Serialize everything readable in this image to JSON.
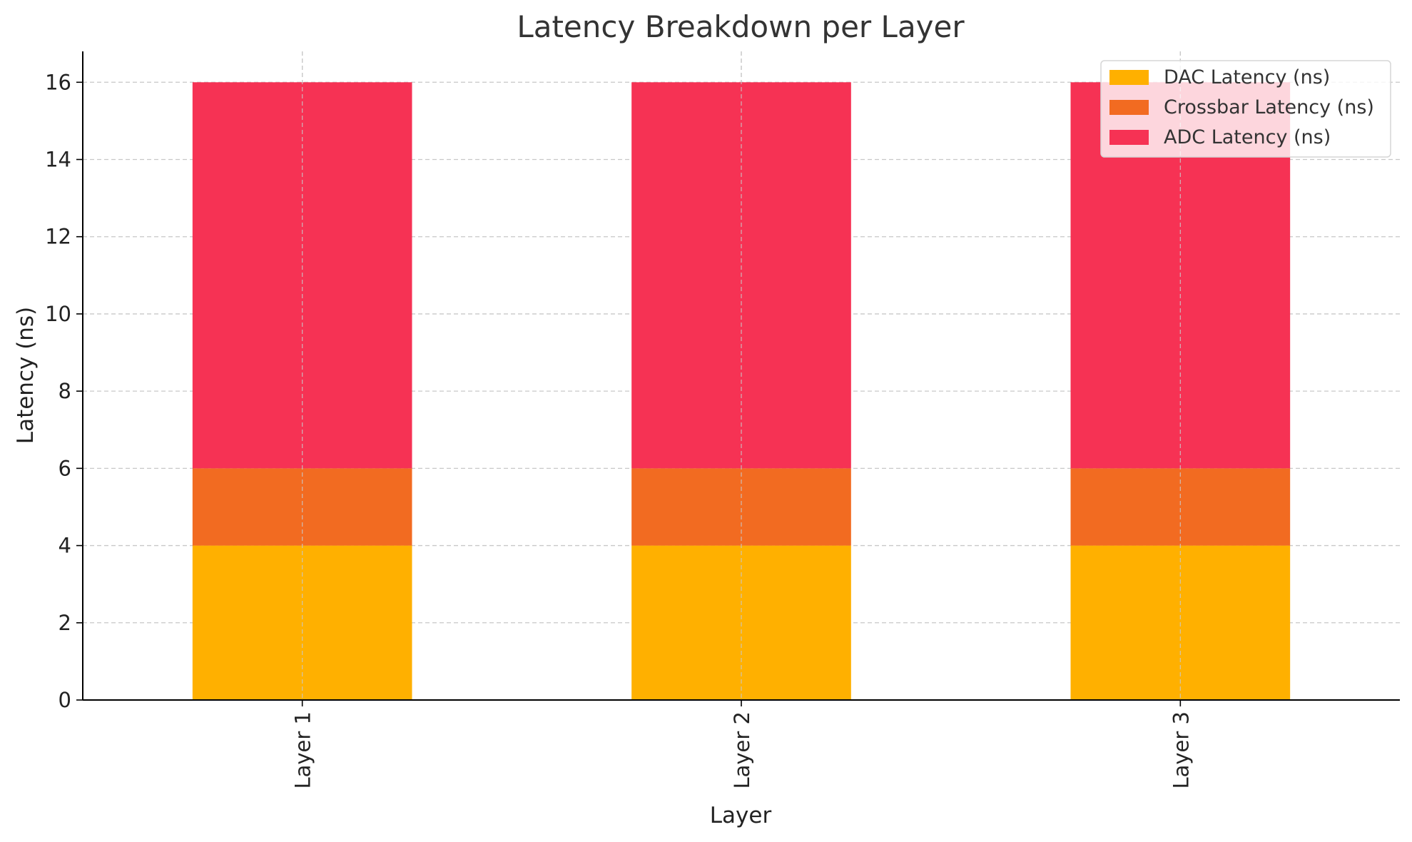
{
  "chart_data": {
    "type": "bar",
    "stacked": true,
    "title": "Latency Breakdown per Layer",
    "xlabel": "Layer",
    "ylabel": "Latency (ns)",
    "categories": [
      "Layer 1",
      "Layer 2",
      "Layer 3"
    ],
    "series": [
      {
        "name": "DAC Latency (ns)",
        "values": [
          4,
          4,
          4
        ],
        "color": "#FFB000"
      },
      {
        "name": "Crossbar Latency (ns)",
        "values": [
          2,
          2,
          2
        ],
        "color": "#F26B21"
      },
      {
        "name": "ADC Latency (ns)",
        "values": [
          10,
          10,
          10
        ],
        "color": "#F63254"
      }
    ],
    "ylim": [
      0,
      16.8
    ],
    "yticks": [
      0,
      2,
      4,
      6,
      8,
      10,
      12,
      14,
      16
    ],
    "grid": true,
    "legend_position": "top-right"
  }
}
